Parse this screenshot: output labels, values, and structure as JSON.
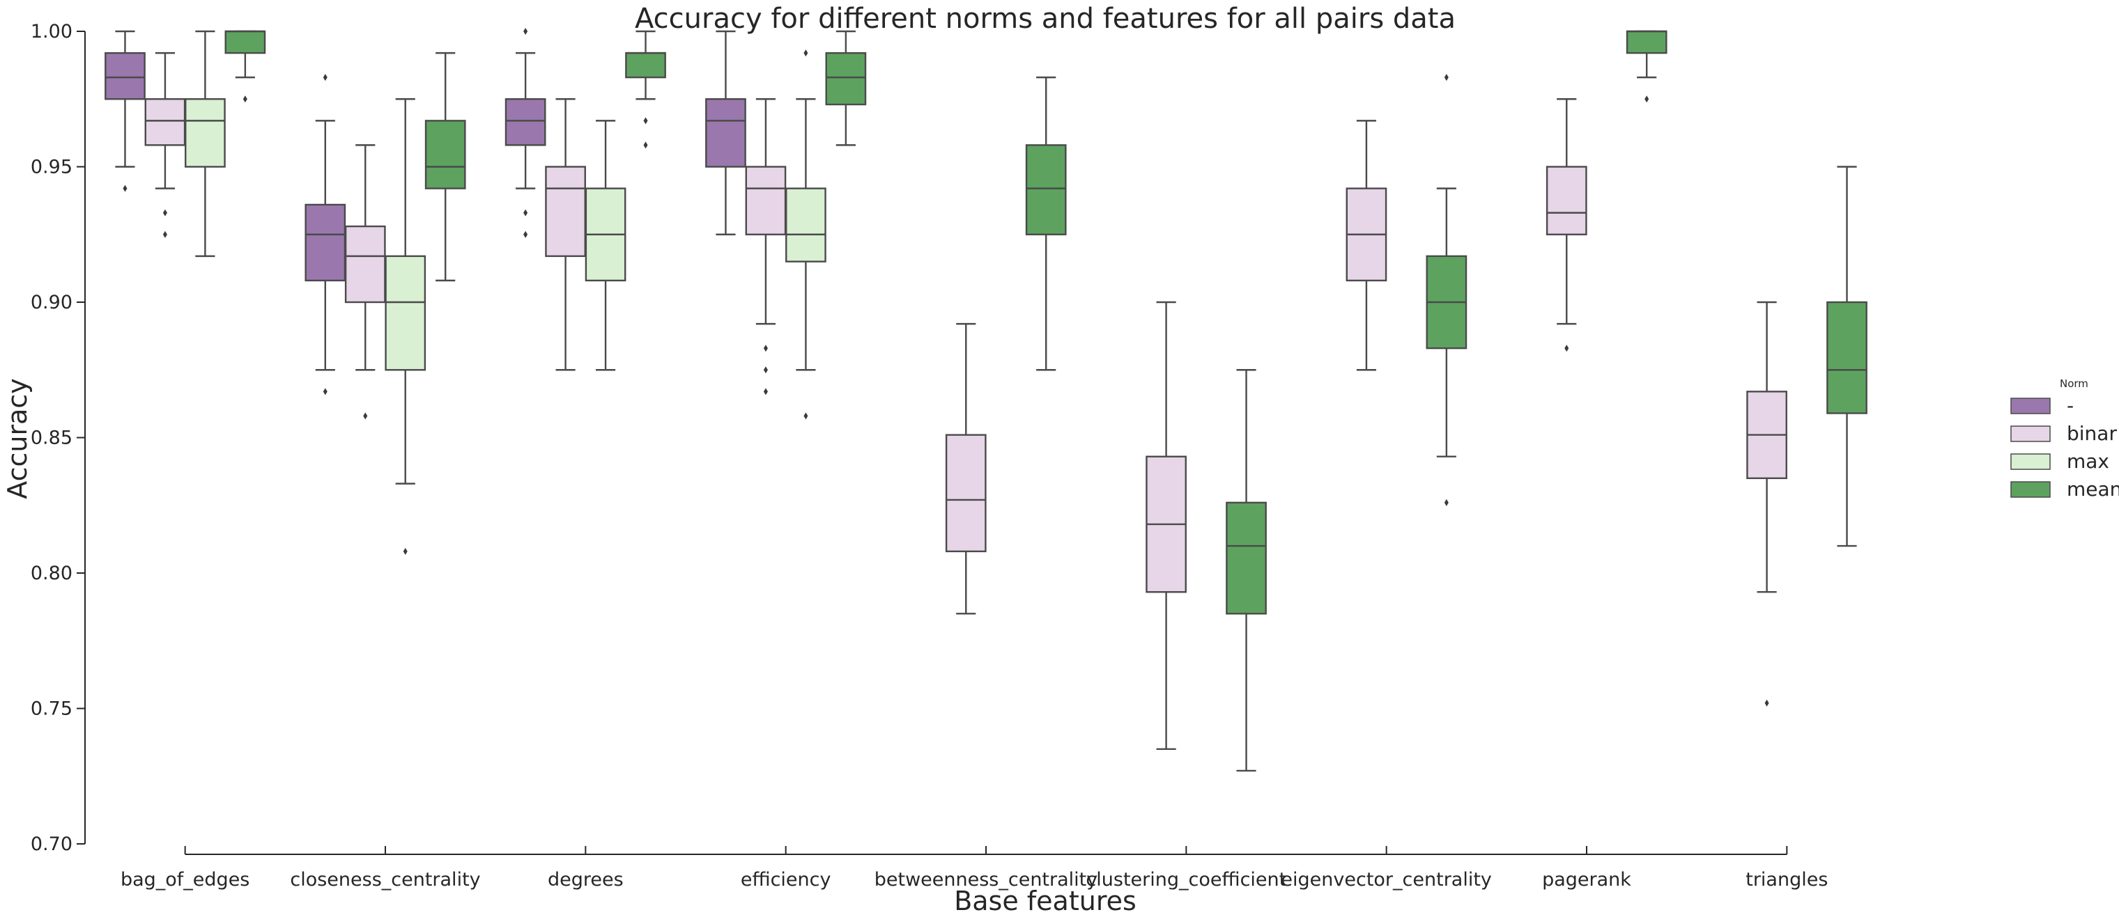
{
  "chart_data": {
    "type": "boxplot",
    "title": "Accuracy for different norms and features for all pairs data",
    "xlabel": "Base features",
    "ylabel": "Accuracy",
    "ylim": [
      0.7,
      1.0
    ],
    "yticks": [
      "0.70",
      "0.75",
      "0.80",
      "0.85",
      "0.90",
      "0.95",
      "1.00"
    ],
    "categories": [
      "bag_of_edges",
      "closeness_centrality",
      "degrees",
      "efficiency",
      "betweenness_centrality",
      "clustering_coefficient",
      "eigenvector_centrality",
      "pagerank",
      "triangles"
    ],
    "legend": {
      "title": "Norm",
      "position": "right",
      "entries": [
        {
          "label": "-",
          "color": "#9a78ae"
        },
        {
          "label": "binar",
          "color": "#e7d5e8"
        },
        {
          "label": "max",
          "color": "#d9f0d3"
        },
        {
          "label": "mean",
          "color": "#5da35f"
        }
      ]
    },
    "groups": [
      {
        "category": "bag_of_edges",
        "boxes": [
          {
            "norm": "-",
            "whislo": 0.95,
            "q1": 0.975,
            "med": 0.983,
            "q3": 0.992,
            "whishi": 1.0,
            "fliers": [
              0.942
            ]
          },
          {
            "norm": "binar",
            "whislo": 0.942,
            "q1": 0.958,
            "med": 0.967,
            "q3": 0.975,
            "whishi": 0.992,
            "fliers": [
              0.933,
              0.925
            ]
          },
          {
            "norm": "max",
            "whislo": 0.917,
            "q1": 0.95,
            "med": 0.967,
            "q3": 0.975,
            "whishi": 1.0,
            "fliers": []
          },
          {
            "norm": "mean",
            "whislo": 0.983,
            "q1": 0.992,
            "med": 1.0,
            "q3": 1.0,
            "whishi": 1.0,
            "fliers": [
              0.975
            ]
          }
        ]
      },
      {
        "category": "closeness_centrality",
        "boxes": [
          {
            "norm": "-",
            "whislo": 0.875,
            "q1": 0.908,
            "med": 0.925,
            "q3": 0.936,
            "whishi": 0.967,
            "fliers": [
              0.983,
              0.867
            ]
          },
          {
            "norm": "binar",
            "whislo": 0.875,
            "q1": 0.9,
            "med": 0.917,
            "q3": 0.928,
            "whishi": 0.958,
            "fliers": [
              0.858
            ]
          },
          {
            "norm": "max",
            "whislo": 0.833,
            "q1": 0.875,
            "med": 0.9,
            "q3": 0.917,
            "whishi": 0.975,
            "fliers": [
              0.808
            ]
          },
          {
            "norm": "mean",
            "whislo": 0.908,
            "q1": 0.942,
            "med": 0.95,
            "q3": 0.967,
            "whishi": 0.992,
            "fliers": []
          }
        ]
      },
      {
        "category": "degrees",
        "boxes": [
          {
            "norm": "-",
            "whislo": 0.942,
            "q1": 0.958,
            "med": 0.967,
            "q3": 0.975,
            "whishi": 0.992,
            "fliers": [
              1.0,
              0.933,
              0.925
            ]
          },
          {
            "norm": "binar",
            "whislo": 0.875,
            "q1": 0.917,
            "med": 0.942,
            "q3": 0.95,
            "whishi": 0.975,
            "fliers": []
          },
          {
            "norm": "max",
            "whislo": 0.875,
            "q1": 0.908,
            "med": 0.925,
            "q3": 0.942,
            "whishi": 0.967,
            "fliers": []
          },
          {
            "norm": "mean",
            "whislo": 0.975,
            "q1": 0.983,
            "med": 0.992,
            "q3": 0.992,
            "whishi": 1.0,
            "fliers": [
              0.967,
              0.958
            ]
          }
        ]
      },
      {
        "category": "efficiency",
        "boxes": [
          {
            "norm": "-",
            "whislo": 0.925,
            "q1": 0.95,
            "med": 0.967,
            "q3": 0.975,
            "whishi": 1.0,
            "fliers": []
          },
          {
            "norm": "binar",
            "whislo": 0.892,
            "q1": 0.925,
            "med": 0.942,
            "q3": 0.95,
            "whishi": 0.975,
            "fliers": [
              0.883,
              0.875,
              0.867
            ]
          },
          {
            "norm": "max",
            "whislo": 0.875,
            "q1": 0.915,
            "med": 0.925,
            "q3": 0.942,
            "whishi": 0.975,
            "fliers": [
              0.992,
              0.858
            ]
          },
          {
            "norm": "mean",
            "whislo": 0.958,
            "q1": 0.973,
            "med": 0.983,
            "q3": 0.992,
            "whishi": 1.0,
            "fliers": []
          }
        ]
      },
      {
        "category": "betweenness_centrality",
        "boxes": [
          {
            "norm": "binar",
            "whislo": 0.785,
            "q1": 0.808,
            "med": 0.827,
            "q3": 0.851,
            "whishi": 0.892,
            "fliers": []
          },
          {
            "norm": "mean",
            "whislo": 0.875,
            "q1": 0.925,
            "med": 0.942,
            "q3": 0.958,
            "whishi": 0.983,
            "fliers": []
          }
        ]
      },
      {
        "category": "clustering_coefficient",
        "boxes": [
          {
            "norm": "binar",
            "whislo": 0.735,
            "q1": 0.793,
            "med": 0.818,
            "q3": 0.843,
            "whishi": 0.9,
            "fliers": []
          },
          {
            "norm": "mean",
            "whislo": 0.727,
            "q1": 0.785,
            "med": 0.81,
            "q3": 0.826,
            "whishi": 0.875,
            "fliers": []
          }
        ]
      },
      {
        "category": "eigenvector_centrality",
        "boxes": [
          {
            "norm": "binar",
            "whislo": 0.875,
            "q1": 0.908,
            "med": 0.925,
            "q3": 0.942,
            "whishi": 0.967,
            "fliers": []
          },
          {
            "norm": "mean",
            "whislo": 0.843,
            "q1": 0.883,
            "med": 0.9,
            "q3": 0.917,
            "whishi": 0.942,
            "fliers": [
              0.983,
              0.826
            ]
          }
        ]
      },
      {
        "category": "pagerank",
        "boxes": [
          {
            "norm": "binar",
            "whislo": 0.892,
            "q1": 0.925,
            "med": 0.933,
            "q3": 0.95,
            "whishi": 0.975,
            "fliers": [
              0.883
            ]
          },
          {
            "norm": "mean",
            "whislo": 0.983,
            "q1": 0.992,
            "med": 1.0,
            "q3": 1.0,
            "whishi": 1.0,
            "fliers": [
              0.975
            ]
          }
        ]
      },
      {
        "category": "triangles",
        "boxes": [
          {
            "norm": "binar",
            "whislo": 0.793,
            "q1": 0.835,
            "med": 0.851,
            "q3": 0.867,
            "whishi": 0.9,
            "fliers": [
              0.752
            ]
          },
          {
            "norm": "mean",
            "whislo": 0.81,
            "q1": 0.859,
            "med": 0.875,
            "q3": 0.9,
            "whishi": 0.95,
            "fliers": []
          }
        ]
      }
    ]
  }
}
